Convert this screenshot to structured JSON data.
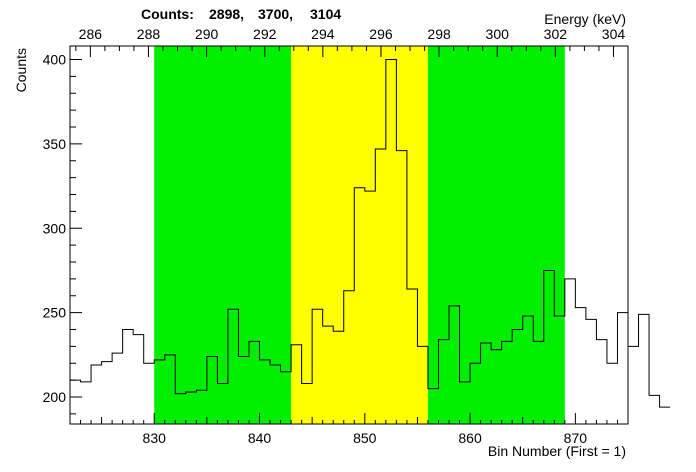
{
  "header": {
    "counts_label": "Counts:",
    "counts_values": [
      "2898,",
      "3700,",
      "3104"
    ]
  },
  "chart_data": {
    "type": "histogram",
    "xlabel": "Bin Number (First = 1)",
    "ylabel": "Counts",
    "x2label": "Energy (keV)",
    "xlim": [
      822,
      875
    ],
    "ylim": [
      184,
      408
    ],
    "x2lim": [
      285.3,
      304.5
    ],
    "x_ticks": [
      830,
      840,
      850,
      860,
      870
    ],
    "y_ticks": [
      200,
      250,
      300,
      350,
      400
    ],
    "x2_ticks": [
      286,
      288,
      290,
      292,
      294,
      296,
      298,
      300,
      302,
      304
    ],
    "regions": [
      {
        "name": "background-left",
        "from": 830,
        "to": 843,
        "color": "#00ee00"
      },
      {
        "name": "peak",
        "from": 843,
        "to": 856,
        "color": "#ffff00"
      },
      {
        "name": "background-right",
        "from": 856,
        "to": 869,
        "color": "#00ee00"
      }
    ],
    "bin_start": 822,
    "bin_width": 1,
    "values": [
      210,
      209,
      219,
      221,
      226,
      240,
      237,
      220,
      222,
      225,
      202,
      203,
      204,
      224,
      208,
      252,
      224,
      233,
      222,
      219,
      215,
      231,
      208,
      252,
      242,
      239,
      263,
      324,
      322,
      347,
      400,
      346,
      264,
      230,
      205,
      234,
      254,
      209,
      220,
      232,
      228,
      233,
      240,
      248,
      233,
      275,
      248,
      270,
      253,
      246,
      234,
      220,
      250,
      230,
      249,
      201,
      194
    ],
    "colors": {
      "line": "#000000",
      "background": "#ffffff"
    }
  }
}
